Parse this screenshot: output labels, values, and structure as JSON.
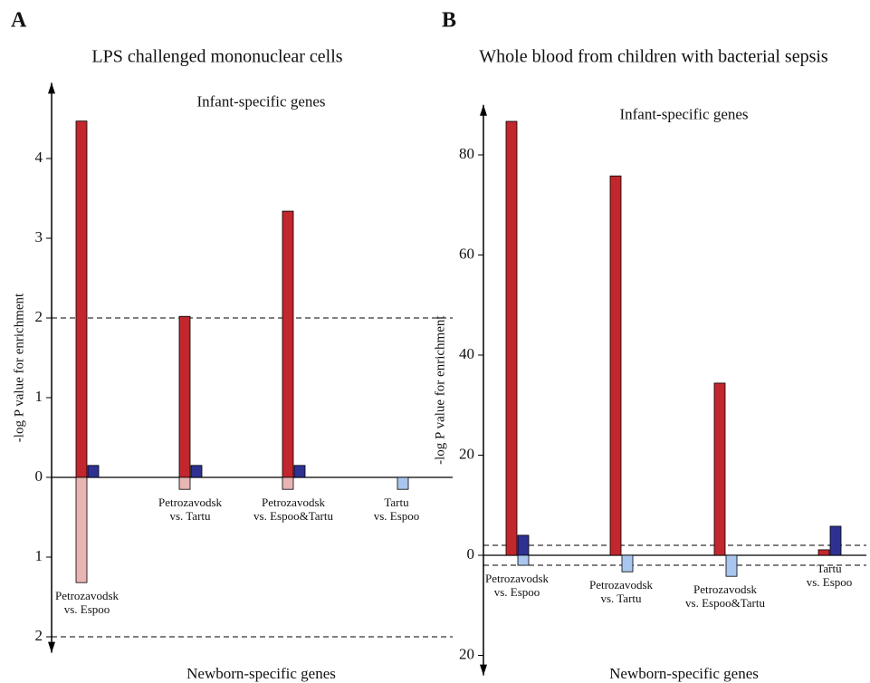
{
  "chart_data": [
    {
      "type": "bar",
      "panel_label": "A",
      "title": "LPS challenged mononuclear cells",
      "ylabel": "-log P value for enrichment",
      "annotations": [
        "Infant-specific genes",
        "Newborn-specific genes"
      ],
      "categories": [
        "Petrozavodsk\nvs. Espoo",
        "Petrozavodsk\nvs. Tartu",
        "Petrozavodsk\nvs. Espoo&Tartu",
        "Tartu\nvs. Espoo"
      ],
      "series": [
        {
          "color": "#c1272d",
          "values": [
            4.47,
            2.02,
            3.34,
            null
          ]
        },
        {
          "color": "#2e3192",
          "values": [
            0.15,
            0.15,
            0.15,
            null
          ]
        },
        {
          "color": "#e8b5b3",
          "values": [
            -1.32,
            -0.15,
            -0.15,
            null
          ]
        },
        {
          "color": "#a9c6ee",
          "values": [
            null,
            null,
            null,
            -0.15
          ]
        }
      ],
      "hlines": [
        2,
        -2
      ],
      "ylim": [
        -2.2,
        4.95
      ],
      "yticks": [
        4,
        3,
        2,
        1,
        0,
        {
          "value": -1,
          "label": "1"
        },
        {
          "value": -2,
          "label": "2"
        }
      ]
    },
    {
      "type": "bar",
      "panel_label": "B",
      "title": "Whole blood from children with bacterial sepsis",
      "ylabel": "-log P value for enrichment",
      "annotations": [
        "Infant-specific genes",
        "Newborn-specific genes"
      ],
      "categories": [
        "Petrozavodsk\nvs. Espoo",
        "Petrozavodsk\nvs. Tartu",
        "Petrozavodsk\nvs. Espoo&Tartu",
        "Tartu\nvs. Espoo"
      ],
      "series": [
        {
          "color": "#c1272d",
          "values": [
            86.7,
            75.8,
            34.4,
            1.1
          ]
        },
        {
          "color": "#2e3192",
          "values": [
            4.0,
            null,
            null,
            5.8
          ]
        },
        {
          "color": "#e8b5b3",
          "values": [
            null,
            null,
            null,
            null
          ]
        },
        {
          "color": "#a9c6ee",
          "values": [
            -2.0,
            -3.3,
            -4.2,
            null
          ]
        }
      ],
      "hlines": [
        2,
        -2
      ],
      "ylim": [
        -24,
        90
      ],
      "yticks": [
        80,
        60,
        40,
        20,
        0,
        {
          "value": -20,
          "label": "20"
        }
      ]
    }
  ]
}
